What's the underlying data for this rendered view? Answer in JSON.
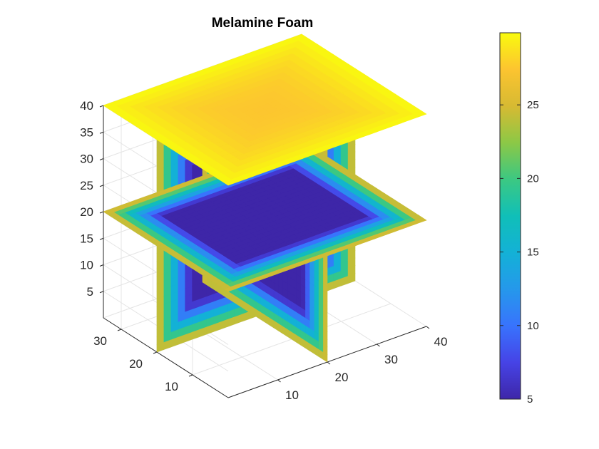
{
  "chart_data": {
    "type": "slice",
    "title": "Melamine Foam",
    "xlabel": "",
    "ylabel": "",
    "zlabel": "",
    "xlim": [
      0,
      40
    ],
    "ylim": [
      0,
      35
    ],
    "zlim": [
      0,
      40
    ],
    "x_ticks": [
      10,
      20,
      30,
      40
    ],
    "y_ticks": [
      10,
      20,
      30
    ],
    "z_ticks": [
      5,
      10,
      15,
      20,
      25,
      30,
      35,
      40
    ],
    "grid": true,
    "colormap": "parula",
    "colorbar": {
      "range": [
        5,
        29.9
      ],
      "ticks": [
        5,
        10,
        15,
        20,
        25
      ]
    },
    "slices": [
      {
        "plane": "z",
        "position": 40,
        "center_value": 27.5,
        "edge_value": 29.9
      },
      {
        "plane": "z",
        "position": 20,
        "center_value": 5,
        "edge_value": 27
      },
      {
        "plane": "x",
        "position": 20,
        "center_value": 5,
        "edge_value": 27
      },
      {
        "plane": "y",
        "position": 20,
        "center_value": 5,
        "edge_value": 27
      }
    ],
    "colors": {
      "low": "#3e26a8",
      "high": "#f9fb0e"
    }
  }
}
